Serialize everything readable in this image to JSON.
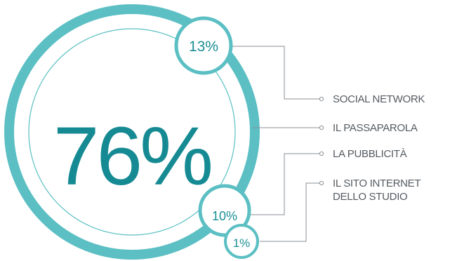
{
  "chart_data": {
    "type": "pie",
    "main_value": {
      "label": "76%",
      "value": 76
    },
    "series": [
      {
        "name": "SOCIAL NETWORK",
        "value": 13,
        "label": "13%"
      },
      {
        "name": "IL PASSAPAROLA",
        "value": 76,
        "label": "76%"
      },
      {
        "name": "LA PUBBLICITÀ",
        "value": 10,
        "label": "10%"
      },
      {
        "name": "IL SITO INTERNET DELLO STUDIO",
        "value": 1,
        "label": "1%"
      }
    ],
    "legend_lines": {
      "social": "SOCIAL NETWORK",
      "passaparola": "IL PASSAPAROLA",
      "pubblicita": "LA PUBBLICITÀ",
      "sito_line1": "IL SITO INTERNET",
      "sito_line2": "DELLO STUDIO"
    },
    "colors": {
      "ring": "#5bbfc3",
      "thin_ring": "#5bbfc3",
      "bubble_border": "#5bbfc3",
      "text_teal": "#158a93",
      "connector": "#8a8f94",
      "legend_text": "#555b61"
    }
  }
}
